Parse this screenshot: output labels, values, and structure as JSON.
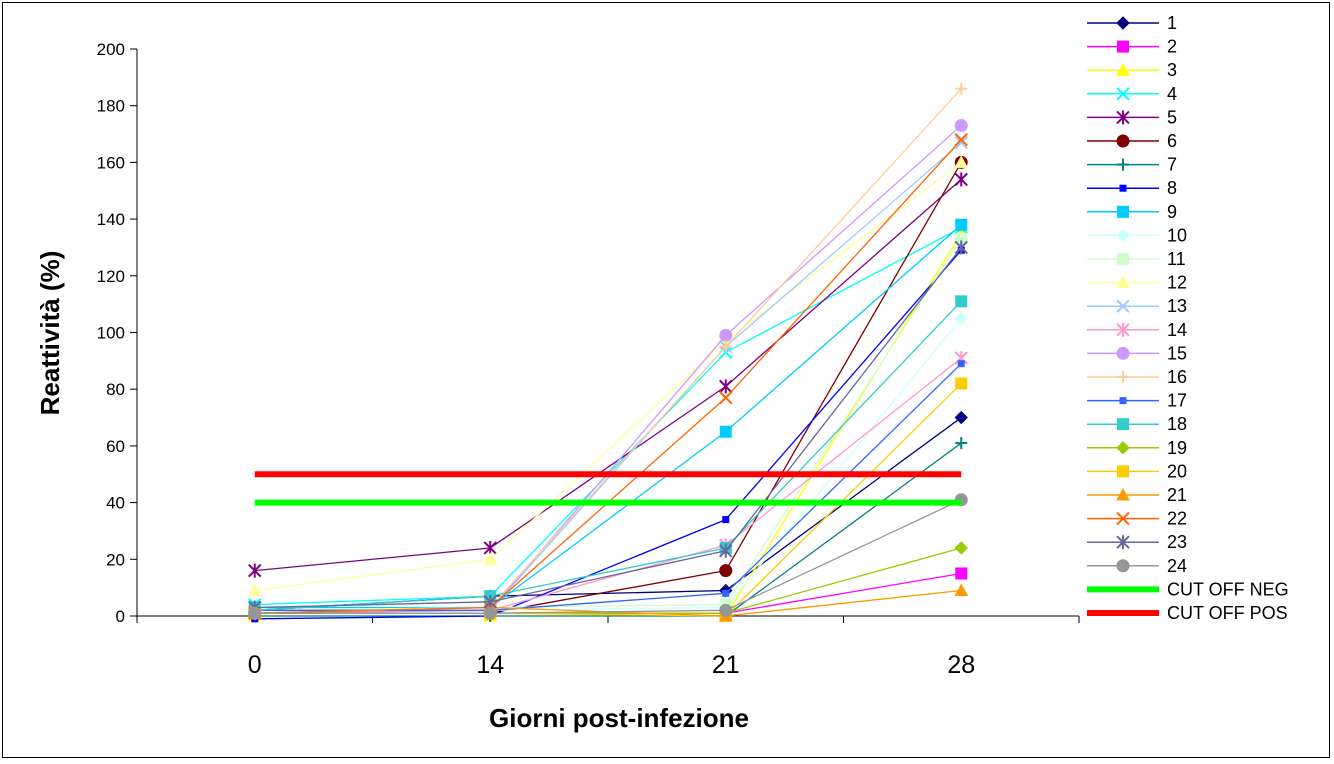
{
  "chart_data": {
    "type": "line",
    "xlabel": "Giorni post-infezione",
    "ylabel": "Reattività (%)",
    "ylim": [
      0,
      200
    ],
    "y_ticks": [
      0,
      20,
      40,
      60,
      80,
      100,
      120,
      140,
      160,
      180,
      200
    ],
    "categories": [
      "0",
      "14",
      "21",
      "28"
    ],
    "grid": false,
    "legend_position": "right",
    "series": [
      {
        "name": "1",
        "color": "#000080",
        "marker": "diamond",
        "values": [
          2,
          7,
          9,
          70
        ]
      },
      {
        "name": "2",
        "color": "#FF00FF",
        "marker": "square",
        "values": [
          1,
          1,
          1,
          15
        ]
      },
      {
        "name": "3",
        "color": "#FFFF00",
        "marker": "triangle",
        "values": [
          0,
          0,
          0,
          135
        ]
      },
      {
        "name": "4",
        "color": "#00FFFF",
        "marker": "x",
        "values": [
          4,
          7,
          93,
          137
        ]
      },
      {
        "name": "5",
        "color": "#800080",
        "marker": "star",
        "values": [
          16,
          24,
          81,
          154
        ]
      },
      {
        "name": "6",
        "color": "#800000",
        "marker": "circle",
        "values": [
          1,
          1,
          16,
          160
        ]
      },
      {
        "name": "7",
        "color": "#008080",
        "marker": "plus",
        "values": [
          0,
          0,
          0,
          61
        ]
      },
      {
        "name": "8",
        "color": "#0000FF",
        "marker": "smallsquare",
        "values": [
          -1,
          0,
          34,
          129
        ]
      },
      {
        "name": "9",
        "color": "#00CCFF",
        "marker": "square",
        "values": [
          3,
          3,
          65,
          138
        ]
      },
      {
        "name": "10",
        "color": "#CCFFFF",
        "marker": "diamond",
        "values": [
          1,
          2,
          3,
          105
        ]
      },
      {
        "name": "11",
        "color": "#CCFFCC",
        "marker": "square",
        "values": [
          2,
          3,
          4,
          133
        ]
      },
      {
        "name": "12",
        "color": "#FFFF99",
        "marker": "triangle",
        "values": [
          9,
          20,
          97,
          160
        ]
      },
      {
        "name": "13",
        "color": "#99CCFF",
        "marker": "x",
        "values": [
          1,
          2,
          95,
          167
        ]
      },
      {
        "name": "14",
        "color": "#FF99CC",
        "marker": "star",
        "values": [
          1,
          2,
          25,
          91
        ]
      },
      {
        "name": "15",
        "color": "#CC99FF",
        "marker": "circle",
        "values": [
          1,
          2,
          99,
          173
        ]
      },
      {
        "name": "16",
        "color": "#FFCC99",
        "marker": "plus",
        "values": [
          1,
          3,
          95,
          186
        ]
      },
      {
        "name": "17",
        "color": "#3366FF",
        "marker": "smallsquare",
        "values": [
          2,
          2,
          8,
          89
        ]
      },
      {
        "name": "18",
        "color": "#33CCCC",
        "marker": "square",
        "values": [
          2,
          7,
          24,
          111
        ]
      },
      {
        "name": "19",
        "color": "#99CC00",
        "marker": "diamond",
        "values": [
          1,
          1,
          1,
          24
        ]
      },
      {
        "name": "20",
        "color": "#FFCC00",
        "marker": "square",
        "values": [
          1,
          1,
          0,
          82
        ]
      },
      {
        "name": "21",
        "color": "#FF9900",
        "marker": "triangle",
        "values": [
          1,
          3,
          0,
          9
        ]
      },
      {
        "name": "22",
        "color": "#FF6600",
        "marker": "x",
        "values": [
          1,
          3,
          77,
          168
        ]
      },
      {
        "name": "23",
        "color": "#666699",
        "marker": "star",
        "values": [
          3,
          5,
          23,
          130
        ]
      },
      {
        "name": "24",
        "color": "#969696",
        "marker": "circle",
        "values": [
          1,
          1,
          2,
          41
        ]
      },
      {
        "name": "CUT OFF NEG",
        "color": "#00FF00",
        "marker": "none",
        "line_width": 6,
        "values": [
          40,
          40,
          40,
          40
        ]
      },
      {
        "name": "CUT OFF POS",
        "color": "#FF0000",
        "marker": "none",
        "line_width": 6,
        "values": [
          50,
          50,
          50,
          50
        ]
      }
    ]
  }
}
